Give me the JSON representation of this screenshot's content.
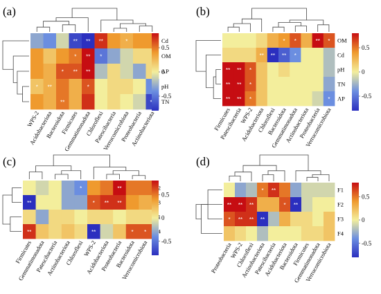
{
  "colors": {
    "scale": [
      "#2b2fbf",
      "#6b8ee0",
      "#f3ee9c",
      "#ef9a2e",
      "#c60d12"
    ]
  },
  "chart_data": [
    {
      "type": "heatmap",
      "panel_label": "(a)",
      "rows": [
        "Cd",
        "OM",
        "AP",
        "pH",
        "TN"
      ],
      "columns": [
        "WPS-2",
        "Acidobacteriota",
        "Bacteroidota",
        "Firmicutes",
        "Gemmatimonadota",
        "Chloroflexi",
        "Patescibacteria",
        "Verrucomicrobiota",
        "Proteobacteria",
        "Actinobacteriota"
      ],
      "values": [
        [
          -0.3,
          -0.4,
          -0.1,
          -0.7,
          -0.8,
          0.7,
          0.4,
          0.3,
          0.4,
          0.4
        ],
        [
          0.4,
          0.2,
          0.4,
          0.5,
          0.8,
          -0.5,
          -0.3,
          -0.1,
          0.1,
          0.1
        ],
        [
          0.4,
          0.3,
          0.6,
          0.6,
          0.8,
          -0.2,
          0.1,
          -0.1,
          -0.3,
          0.1
        ],
        [
          0.2,
          0.3,
          0.5,
          0.3,
          0.6,
          0.0,
          0.1,
          0.1,
          0.0,
          -0.4
        ],
        [
          0.4,
          0.3,
          0.5,
          0.3,
          0.7,
          0.0,
          0.1,
          0.0,
          -0.1,
          -0.7
        ]
      ],
      "significance": [
        [
          "",
          "",
          "",
          "**",
          "**",
          "**",
          "",
          "*",
          "",
          ""
        ],
        [
          "",
          "",
          "",
          "*",
          "**",
          "*",
          "",
          "",
          "",
          ""
        ],
        [
          "",
          "",
          "*",
          "**",
          "**",
          "",
          "",
          "",
          "",
          ""
        ],
        [
          "*",
          "**",
          "",
          "",
          "*",
          "",
          "",
          "",
          "",
          ""
        ],
        [
          "",
          "",
          "**",
          "",
          "",
          "",
          "",
          "",
          "",
          "**"
        ]
      ],
      "colorbar_ticks": [
        "0.5",
        "0",
        "-0.5"
      ],
      "vmin": -0.8,
      "vmax": 0.8
    },
    {
      "type": "heatmap",
      "panel_label": "(b)",
      "rows": [
        "OM",
        "Cd",
        "pH",
        "TN",
        "AP"
      ],
      "columns": [
        "Firmicutes",
        "Patescibacteria",
        "WPS-2",
        "Acidobacteriota",
        "Chloroflexi",
        "Bacteroidota",
        "Gemmatimonadota",
        "Actinobacteriota",
        "Proteobacteria",
        "Verrucomicrobiota"
      ],
      "values": [
        [
          0.0,
          0.0,
          0.0,
          0.1,
          0.3,
          0.4,
          0.6,
          0.3,
          0.8,
          0.6
        ],
        [
          0.1,
          0.1,
          0.1,
          0.3,
          -0.8,
          -0.6,
          -0.4,
          0.0,
          0.0,
          -0.2
        ],
        [
          0.8,
          0.8,
          0.6,
          0.2,
          0.0,
          0.1,
          0.0,
          0.0,
          0.0,
          -0.2
        ],
        [
          0.8,
          0.8,
          0.6,
          0.2,
          0.0,
          0.0,
          0.0,
          0.0,
          0.0,
          -0.3
        ],
        [
          0.8,
          0.8,
          0.5,
          0.2,
          0.0,
          0.0,
          0.0,
          0.0,
          -0.1,
          -0.4
        ]
      ],
      "significance": [
        [
          "",
          "",
          "",
          "",
          "",
          "*",
          "*",
          "",
          "**",
          "*"
        ],
        [
          "",
          "",
          "",
          "**",
          "**",
          "**",
          "*",
          "",
          "",
          ""
        ],
        [
          "**",
          "**",
          "*",
          "",
          "",
          "",
          "",
          "",
          "",
          ""
        ],
        [
          "**",
          "**",
          "*",
          "",
          "",
          "",
          "",
          "",
          "",
          ""
        ],
        [
          "**",
          "**",
          "*",
          "",
          "",
          "",
          "",
          "",
          "",
          "*"
        ]
      ],
      "colorbar_ticks": [
        "0.5",
        "0",
        "-0.5"
      ],
      "vmin": -0.8,
      "vmax": 0.8
    },
    {
      "type": "heatmap",
      "panel_label": "(c)",
      "rows": [
        "F2",
        "F3",
        "F1",
        "F4"
      ],
      "columns": [
        "Firmicutes",
        "Gemmatimonadota",
        "Patescibacteria",
        "Actinobacteriota",
        "Chloroflexi",
        "WPS-2",
        "Acidobacteriota",
        "Proteobacteria",
        "Bacteroidota",
        "Verrucomicrobiota"
      ],
      "values": [
        [
          0.0,
          -0.1,
          0.0,
          -0.3,
          -0.4,
          0.4,
          0.5,
          0.8,
          0.5,
          0.5
        ],
        [
          -0.8,
          0.0,
          0.0,
          -0.3,
          -0.3,
          0.6,
          0.7,
          0.7,
          0.4,
          0.3
        ],
        [
          0.1,
          -0.3,
          0.1,
          0.1,
          0.0,
          0.1,
          0.1,
          0.0,
          0.1,
          0.1
        ],
        [
          0.7,
          0.2,
          0.1,
          0.2,
          0.1,
          -0.8,
          -0.1,
          0.2,
          0.6,
          0.6
        ]
      ],
      "significance": [
        [
          "",
          "",
          "",
          "",
          "*",
          "",
          "",
          "**",
          "",
          ""
        ],
        [
          "**",
          "",
          "",
          "",
          "",
          "*",
          "**",
          "**",
          "",
          ""
        ],
        [
          "",
          "",
          "",
          "",
          "",
          "",
          "",
          "",
          "",
          ""
        ],
        [
          "**",
          "",
          "",
          "",
          "",
          "**",
          "",
          "",
          "*",
          "*"
        ]
      ],
      "colorbar_ticks": [
        "0.5",
        "0",
        "-0.5"
      ],
      "vmin": -0.8,
      "vmax": 0.8
    },
    {
      "type": "heatmap",
      "panel_label": "(d)",
      "rows": [
        "F1",
        "F2",
        "F3",
        "F4"
      ],
      "columns": [
        "Proteobacteria",
        "WPS-2",
        "Chloroflexi",
        "Actinobacteriota",
        "Patescibacteria",
        "Acidobacteriota",
        "Bacteroidota",
        "Firmicutes",
        "Gemmatimonadota",
        "Verrucomicrobiota"
      ],
      "values": [
        [
          0.0,
          -0.3,
          -0.2,
          0.5,
          0.7,
          0.5,
          -0.3,
          -0.1,
          -0.1,
          -0.1
        ],
        [
          0.8,
          0.8,
          0.7,
          0.3,
          0.3,
          0.6,
          -0.8,
          -0.1,
          0.0,
          0.0
        ],
        [
          0.6,
          0.7,
          0.7,
          -0.8,
          -0.2,
          0.3,
          0.1,
          0.1,
          0.0,
          0.2
        ],
        [
          0.2,
          0.1,
          0.0,
          -0.2,
          0.0,
          0.0,
          0.0,
          0.1,
          0.1,
          0.2
        ]
      ],
      "significance": [
        [
          "",
          "",
          "",
          "*",
          "**",
          "",
          "",
          "",
          "",
          ""
        ],
        [
          "**",
          "**",
          "**",
          "",
          "",
          "*",
          "**",
          "",
          "",
          ""
        ],
        [
          "*",
          "**",
          "**",
          "**",
          "",
          "",
          "",
          "",
          "",
          ""
        ],
        [
          "",
          "",
          "",
          "",
          "",
          "",
          "",
          "",
          "",
          ""
        ]
      ],
      "colorbar_ticks": [
        "0.5",
        "0",
        "-0.5"
      ],
      "vmin": -0.8,
      "vmax": 0.8
    }
  ]
}
